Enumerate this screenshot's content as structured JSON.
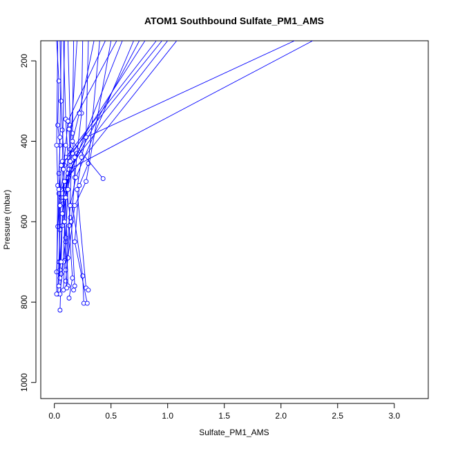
{
  "chart_data": {
    "type": "line",
    "title": "ATOM1 Southbound Sulfate_PM1_AMS",
    "xlabel": "Sulfate_PM1_AMS",
    "ylabel": "Pressure (mbar)",
    "xlim": [
      -0.12,
      3.3
    ],
    "ylim": [
      1040,
      150
    ],
    "y_reversed": true,
    "grid": false,
    "legend": "none",
    "x_ticks": [
      "0.0",
      "0.5",
      "1.0",
      "1.5",
      "2.0",
      "2.5",
      "3.0"
    ],
    "x_tick_values": [
      0,
      0.5,
      1.0,
      1.5,
      2.0,
      2.5,
      3.0
    ],
    "y_ticks": [
      "200",
      "400",
      "600",
      "800",
      "1000"
    ],
    "y_tick_values": [
      200,
      400,
      600,
      800,
      1000
    ],
    "color": "#0000ff",
    "series": [
      {
        "points": [
          [
            0.02,
            150
          ],
          [
            0.04,
            250
          ],
          [
            0.03,
            360
          ],
          [
            0.05,
            410
          ],
          [
            0.04,
            480
          ],
          [
            0.06,
            540
          ],
          [
            0.05,
            620
          ],
          [
            0.04,
            700
          ],
          [
            0.03,
            780
          ]
        ]
      },
      {
        "points": [
          [
            0.05,
            150
          ],
          [
            0.06,
            300
          ],
          [
            0.07,
            372
          ],
          [
            0.09,
            460
          ],
          [
            0.08,
            555
          ],
          [
            0.1,
            650
          ],
          [
            0.06,
            730
          ],
          [
            0.05,
            820
          ]
        ]
      },
      {
        "points": [
          [
            0.08,
            150
          ],
          [
            0.1,
            345
          ],
          [
            0.12,
            440
          ],
          [
            0.1,
            500
          ],
          [
            0.14,
            590
          ],
          [
            0.12,
            690
          ],
          [
            0.1,
            748
          ]
        ]
      },
      {
        "points": [
          [
            0.12,
            150
          ],
          [
            0.14,
            360
          ],
          [
            0.15,
            470
          ],
          [
            0.13,
            610
          ],
          [
            0.16,
            740
          ],
          [
            0.13,
            790
          ]
        ]
      },
      {
        "points": [
          [
            0.17,
            150
          ],
          [
            0.16,
            380
          ],
          [
            0.18,
            490
          ],
          [
            0.15,
            600
          ],
          [
            0.18,
            760
          ],
          [
            0.17,
            770
          ]
        ]
      },
      {
        "points": [
          [
            0.2,
            150
          ],
          [
            0.14,
            420
          ],
          [
            0.12,
            520
          ],
          [
            0.1,
            640
          ],
          [
            0.08,
            770
          ]
        ]
      },
      {
        "points": [
          [
            0.25,
            150
          ],
          [
            0.24,
            330
          ],
          [
            0.2,
            430
          ],
          [
            0.16,
            560
          ],
          [
            0.25,
            735
          ],
          [
            0.26,
            803
          ]
        ]
      },
      {
        "points": [
          [
            0.3,
            150
          ],
          [
            0.28,
            390
          ],
          [
            0.24,
            440
          ],
          [
            0.2,
            520
          ],
          [
            0.28,
            765
          ],
          [
            0.3,
            770
          ]
        ]
      },
      {
        "points": [
          [
            0.4,
            150
          ],
          [
            0.3,
            455
          ],
          [
            0.22,
            510
          ],
          [
            0.18,
            650
          ],
          [
            0.29,
            803
          ]
        ]
      },
      {
        "points": [
          [
            0.5,
            150
          ],
          [
            0.28,
            500
          ],
          [
            0.18,
            560
          ],
          [
            0.12,
            690
          ],
          [
            0.09,
            697
          ]
        ]
      },
      {
        "points": [
          [
            0.6,
            150
          ],
          [
            0.15,
            470
          ],
          [
            0.1,
            520
          ],
          [
            0.08,
            700
          ],
          [
            0.05,
            780
          ]
        ]
      },
      {
        "points": [
          [
            0.7,
            150
          ],
          [
            0.19,
            490
          ],
          [
            0.14,
            560
          ],
          [
            0.1,
            720
          ]
        ]
      },
      {
        "points": [
          [
            0.8,
            150
          ],
          [
            0.16,
            430
          ],
          [
            0.12,
            480
          ],
          [
            0.07,
            610
          ],
          [
            0.05,
            720
          ]
        ]
      },
      {
        "points": [
          [
            0.9,
            150
          ],
          [
            0.1,
            440
          ],
          [
            0.06,
            520
          ],
          [
            0.03,
            612
          ]
        ]
      },
      {
        "points": [
          [
            1.0,
            150
          ],
          [
            0.14,
            460
          ],
          [
            0.08,
            540
          ],
          [
            0.05,
            700
          ]
        ]
      },
      {
        "points": [
          [
            1.08,
            150
          ],
          [
            0.12,
            490
          ],
          [
            0.04,
            530
          ],
          [
            0.02,
            725
          ]
        ]
      },
      {
        "points": [
          [
            2.12,
            150
          ],
          [
            0.28,
            390
          ],
          [
            0.18,
            440
          ],
          [
            0.1,
            540
          ]
        ]
      },
      {
        "points": [
          [
            2.28,
            150
          ],
          [
            0.13,
            470
          ],
          [
            0.1,
            540
          ],
          [
            0.12,
            760
          ]
        ]
      },
      {
        "points": [
          [
            0.03,
            150
          ],
          [
            0.02,
            410
          ],
          [
            0.03,
            510
          ],
          [
            0.02,
            780
          ]
        ]
      },
      {
        "points": [
          [
            0.06,
            150
          ],
          [
            0.05,
            390
          ],
          [
            0.04,
            520
          ],
          [
            0.05,
            740
          ]
        ]
      },
      {
        "points": [
          [
            0.09,
            150
          ],
          [
            0.07,
            450
          ],
          [
            0.09,
            600
          ],
          [
            0.11,
            765
          ]
        ]
      },
      {
        "points": [
          [
            0.35,
            150
          ],
          [
            0.22,
            330
          ],
          [
            0.16,
            400
          ],
          [
            0.43,
            493
          ]
        ]
      },
      {
        "points": [
          [
            0.45,
            150
          ],
          [
            0.12,
            350
          ],
          [
            0.1,
            410
          ],
          [
            0.08,
            470
          ]
        ]
      },
      {
        "points": [
          [
            0.55,
            150
          ],
          [
            0.13,
            370
          ],
          [
            0.14,
            450
          ],
          [
            0.12,
            520
          ]
        ]
      },
      {
        "points": [
          [
            0.75,
            150
          ],
          [
            0.09,
            500
          ],
          [
            0.07,
            580
          ],
          [
            0.06,
            700
          ]
        ]
      },
      {
        "points": [
          [
            0.95,
            150
          ],
          [
            0.06,
            460
          ],
          [
            0.05,
            560
          ],
          [
            0.04,
            760
          ]
        ]
      }
    ]
  }
}
